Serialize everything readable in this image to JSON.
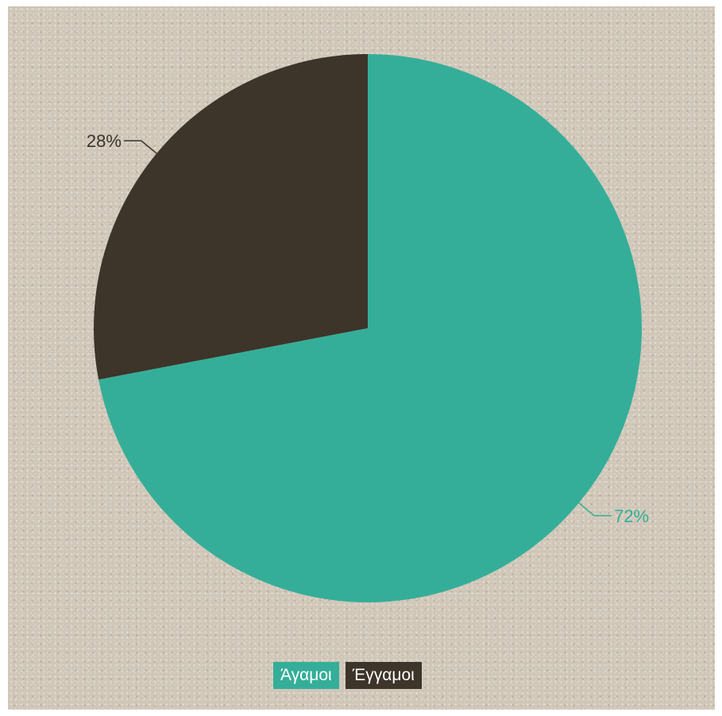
{
  "chart_data": {
    "type": "pie",
    "slices": [
      {
        "name": "Άγαμοι",
        "value": 72,
        "label": "72%",
        "color": "#35ae99"
      },
      {
        "name": "Έγγαμοι",
        "value": 28,
        "label": "28%",
        "color": "#3d342a"
      }
    ],
    "legend": {
      "placement": "bottom-center"
    }
  },
  "legend_items": [
    "Άγαμοι",
    "Έγγαμοι"
  ]
}
